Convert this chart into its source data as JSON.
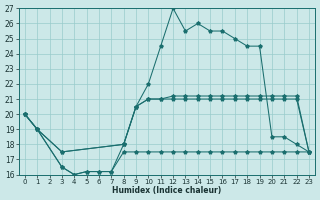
{
  "xlabel": "Humidex (Indice chaleur)",
  "xlim": [
    -0.5,
    23.5
  ],
  "ylim": [
    16,
    27
  ],
  "yticks": [
    16,
    17,
    18,
    19,
    20,
    21,
    22,
    23,
    24,
    25,
    26,
    27
  ],
  "xticks": [
    0,
    1,
    2,
    3,
    4,
    5,
    6,
    7,
    8,
    9,
    10,
    11,
    12,
    13,
    14,
    15,
    16,
    17,
    18,
    19,
    20,
    21,
    22,
    23
  ],
  "bg_color": "#cce8e8",
  "grid_color": "#99cccc",
  "line_color": "#1a6e6e",
  "series": [
    {
      "x": [
        0,
        1,
        3,
        8,
        9,
        10,
        11,
        12,
        13,
        14,
        15,
        16,
        17,
        18,
        19,
        20,
        21,
        22,
        23
      ],
      "y": [
        20,
        19,
        17.5,
        18,
        20.5,
        22,
        24.5,
        27,
        25.5,
        26,
        25.5,
        25.5,
        25,
        24.5,
        24.5,
        18.5,
        18.5,
        18,
        17.5
      ]
    },
    {
      "x": [
        0,
        1,
        3,
        8,
        9,
        10,
        11,
        12,
        13,
        14,
        15,
        16,
        17,
        18,
        19,
        20,
        21,
        22,
        23
      ],
      "y": [
        20,
        19,
        17.5,
        18,
        20.5,
        21,
        21,
        21.2,
        21.2,
        21.2,
        21.2,
        21.2,
        21.2,
        21.2,
        21.2,
        21.2,
        21.2,
        21.2,
        17.5
      ]
    },
    {
      "x": [
        0,
        1,
        3,
        4,
        5,
        6,
        7,
        8,
        9,
        10,
        11,
        12,
        13,
        14,
        15,
        16,
        17,
        18,
        19,
        20,
        21,
        22,
        23
      ],
      "y": [
        20,
        19,
        16.5,
        16,
        16.2,
        16.2,
        16.2,
        18,
        20.5,
        21,
        21,
        21,
        21,
        21,
        21,
        21,
        21,
        21,
        21,
        21,
        21,
        21,
        17.5
      ]
    },
    {
      "x": [
        0,
        1,
        3,
        4,
        5,
        6,
        7,
        8,
        9,
        10,
        11,
        12,
        13,
        14,
        15,
        16,
        17,
        18,
        19,
        20,
        21,
        22,
        23
      ],
      "y": [
        20,
        19,
        16.5,
        16,
        16.2,
        16.2,
        16.2,
        17.5,
        17.5,
        17.5,
        17.5,
        17.5,
        17.5,
        17.5,
        17.5,
        17.5,
        17.5,
        17.5,
        17.5,
        17.5,
        17.5,
        17.5,
        17.5
      ]
    }
  ]
}
